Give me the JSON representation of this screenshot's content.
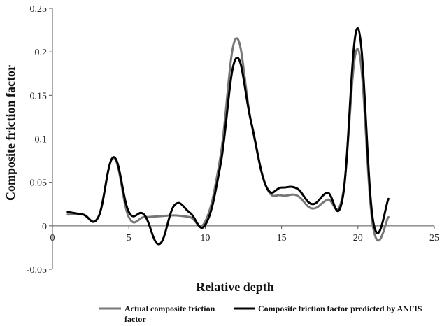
{
  "chart_data": {
    "type": "line",
    "title": "",
    "xlabel": "Relative depth",
    "ylabel": "Composite friction factor",
    "xlim": [
      0,
      25
    ],
    "ylim": [
      -0.05,
      0.25
    ],
    "xticks": [
      0,
      5,
      10,
      15,
      20,
      25
    ],
    "xtick_labels": [
      "0",
      "5",
      "10",
      "15",
      "20",
      "25"
    ],
    "yticks": [
      -0.05,
      0,
      0.05,
      0.1,
      0.15,
      0.2,
      0.25
    ],
    "ytick_labels": [
      "-0.05",
      "0",
      "0.05",
      "0.1",
      "0.15",
      "0.2",
      "0.25"
    ],
    "grid": false,
    "legend_position": "bottom",
    "x": [
      1,
      2,
      3,
      4,
      5,
      6,
      7,
      8,
      9,
      10,
      11,
      12,
      13,
      14,
      15,
      16,
      17,
      18,
      19,
      20,
      21,
      22
    ],
    "series": [
      {
        "name": "Actual composite friction factor",
        "legend_lines": [
          "Actual composite friction",
          "factor"
        ],
        "color": "#777777",
        "values": [
          0.013,
          0.013,
          0.01,
          0.078,
          0.01,
          0.01,
          0.011,
          0.012,
          0.01,
          0.005,
          0.08,
          0.215,
          0.12,
          0.045,
          0.035,
          0.035,
          0.02,
          0.03,
          0.035,
          0.203,
          -0.002,
          0.01
        ]
      },
      {
        "name": "Composite friction factor predicted by ANFIS",
        "legend_lines": [
          "Composite friction factor predicted by ANFIS"
        ],
        "color": "#000000",
        "values": [
          0.016,
          0.013,
          0.01,
          0.079,
          0.016,
          0.013,
          -0.021,
          0.024,
          0.015,
          0.001,
          0.07,
          0.192,
          0.12,
          0.045,
          0.044,
          0.043,
          0.025,
          0.038,
          0.032,
          0.227,
          0.005,
          0.031
        ]
      }
    ]
  }
}
